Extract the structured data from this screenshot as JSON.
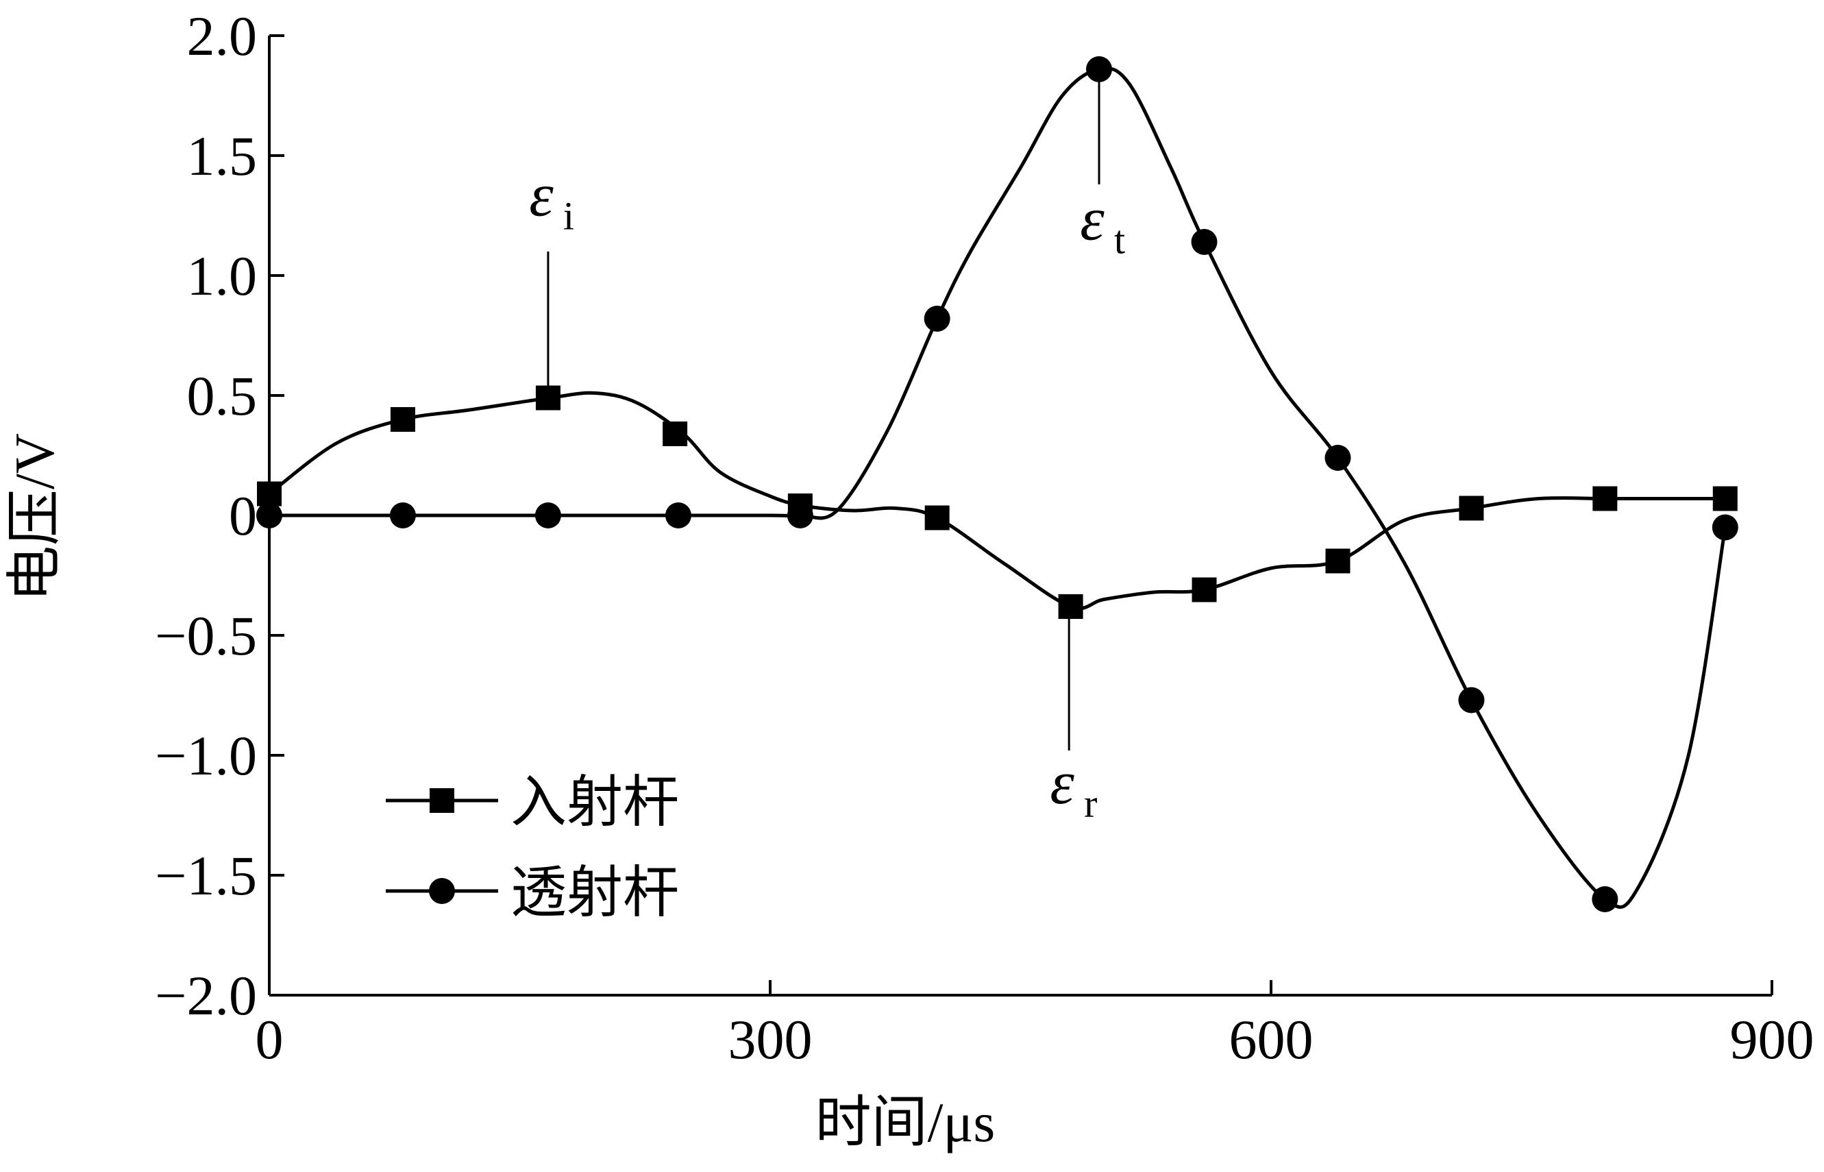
{
  "chart_data": {
    "type": "line",
    "title": "",
    "xlabel": "时间/μs",
    "ylabel": "电压/V",
    "xlim": [
      0,
      900
    ],
    "ylim": [
      -2.0,
      2.0
    ],
    "x_ticks": [
      "0",
      "300",
      "600",
      "900"
    ],
    "y_ticks": [
      "2.0",
      "1.5",
      "1.0",
      "0.5",
      "0",
      "−0.5",
      "−1.0",
      "−1.5",
      "−2.0"
    ],
    "grid": false,
    "legend_position": "bottom-left",
    "series": [
      {
        "name": "入射杆",
        "marker": "square",
        "color": "#000000",
        "x": [
          0,
          40,
          80,
          120,
          168,
          195,
          220,
          248,
          270,
          300,
          320,
          350,
          375,
          400,
          440,
          480,
          500,
          530,
          560,
          600,
          640,
          680,
          720,
          760,
          800,
          840,
          872
        ],
        "y": [
          0.09,
          0.3,
          0.4,
          0.44,
          0.49,
          0.51,
          0.47,
          0.34,
          0.18,
          0.08,
          0.04,
          0.02,
          0.03,
          -0.01,
          -0.2,
          -0.38,
          -0.35,
          -0.32,
          -0.31,
          -0.22,
          -0.19,
          -0.02,
          0.03,
          0.07,
          0.07,
          0.07,
          0.07
        ]
      },
      {
        "name": "透射杆",
        "marker": "circle",
        "color": "#000000",
        "x": [
          0,
          80,
          167,
          245,
          300,
          318,
          340,
          370,
          400,
          420,
          450,
          475,
          497,
          515,
          540,
          560,
          600,
          640,
          680,
          720,
          760,
          800,
          820,
          850,
          872
        ],
        "y": [
          0,
          0,
          0,
          0,
          0,
          0,
          0.02,
          0.35,
          0.82,
          1.1,
          1.45,
          1.75,
          1.86,
          1.8,
          1.45,
          1.14,
          0.6,
          0.24,
          -0.2,
          -0.77,
          -1.25,
          -1.6,
          -1.55,
          -1.0,
          -0.05
        ]
      }
    ],
    "square_markers_x": [
      0,
      80,
      167,
      243,
      318,
      400,
      480,
      560,
      640,
      720,
      800,
      872
    ],
    "square_markers_y": [
      0.09,
      0.4,
      0.49,
      0.34,
      0.04,
      -0.01,
      -0.38,
      -0.31,
      -0.19,
      0.03,
      0.07,
      0.07
    ],
    "circle_markers_x": [
      0,
      80,
      167,
      245,
      318,
      400,
      497,
      560,
      640,
      720,
      800,
      872
    ],
    "circle_markers_y": [
      0,
      0,
      0,
      0,
      0,
      0.82,
      1.86,
      1.14,
      0.24,
      -0.77,
      -1.6,
      -0.05
    ],
    "annotations": [
      {
        "main": "ε",
        "sub": "i",
        "x": 167,
        "y": 0.49,
        "line_to_y": 1.1,
        "label_y": 1.25
      },
      {
        "main": "ε",
        "sub": "t",
        "x": 497,
        "y": 1.86,
        "line_to_y": 1.38,
        "label_y": 1.15
      },
      {
        "main": "ε",
        "sub": "r",
        "x": 479,
        "y": -0.38,
        "line_to_y": -0.98,
        "label_y": -1.2
      }
    ]
  }
}
